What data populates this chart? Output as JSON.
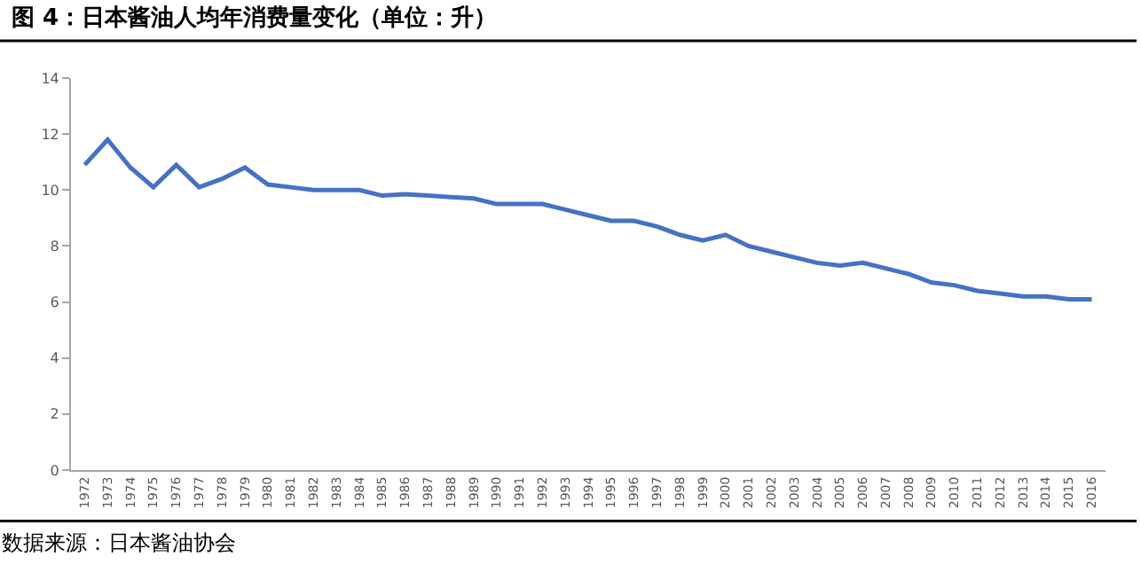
{
  "chart_data": {
    "type": "line",
    "title": "图 4：日本酱油人均年消费量变化（单位：升）",
    "categories": [
      "1972",
      "1973",
      "1974",
      "1975",
      "1976",
      "1977",
      "1978",
      "1979",
      "1980",
      "1981",
      "1982",
      "1983",
      "1984",
      "1985",
      "1986",
      "1987",
      "1988",
      "1989",
      "1990",
      "1991",
      "1992",
      "1993",
      "1994",
      "1995",
      "1996",
      "1997",
      "1998",
      "1999",
      "2000",
      "2001",
      "2002",
      "2003",
      "2004",
      "2005",
      "2006",
      "2007",
      "2008",
      "2009",
      "2010",
      "2011",
      "2012",
      "2013",
      "2014",
      "2015",
      "2016"
    ],
    "series": [
      {
        "color": "#4472c4",
        "values": [
          10.9,
          11.8,
          10.8,
          10.1,
          10.9,
          10.1,
          10.4,
          10.8,
          10.2,
          10.1,
          10.0,
          10.0,
          10.0,
          9.8,
          9.85,
          9.8,
          9.75,
          9.7,
          9.5,
          9.5,
          9.5,
          9.3,
          9.1,
          8.9,
          8.9,
          8.7,
          8.4,
          8.2,
          8.4,
          8.0,
          7.8,
          7.6,
          7.4,
          7.3,
          7.4,
          7.2,
          7.0,
          6.7,
          6.6,
          6.4,
          6.3,
          6.2,
          6.2,
          6.1,
          6.1
        ]
      }
    ],
    "ylim": [
      0,
      14
    ],
    "yticks": [
      0,
      2,
      4,
      6,
      8,
      10,
      12,
      14
    ],
    "marker": "none",
    "line_style": "solid",
    "annotations": [
      "数据来源：日本酱油协会"
    ]
  }
}
